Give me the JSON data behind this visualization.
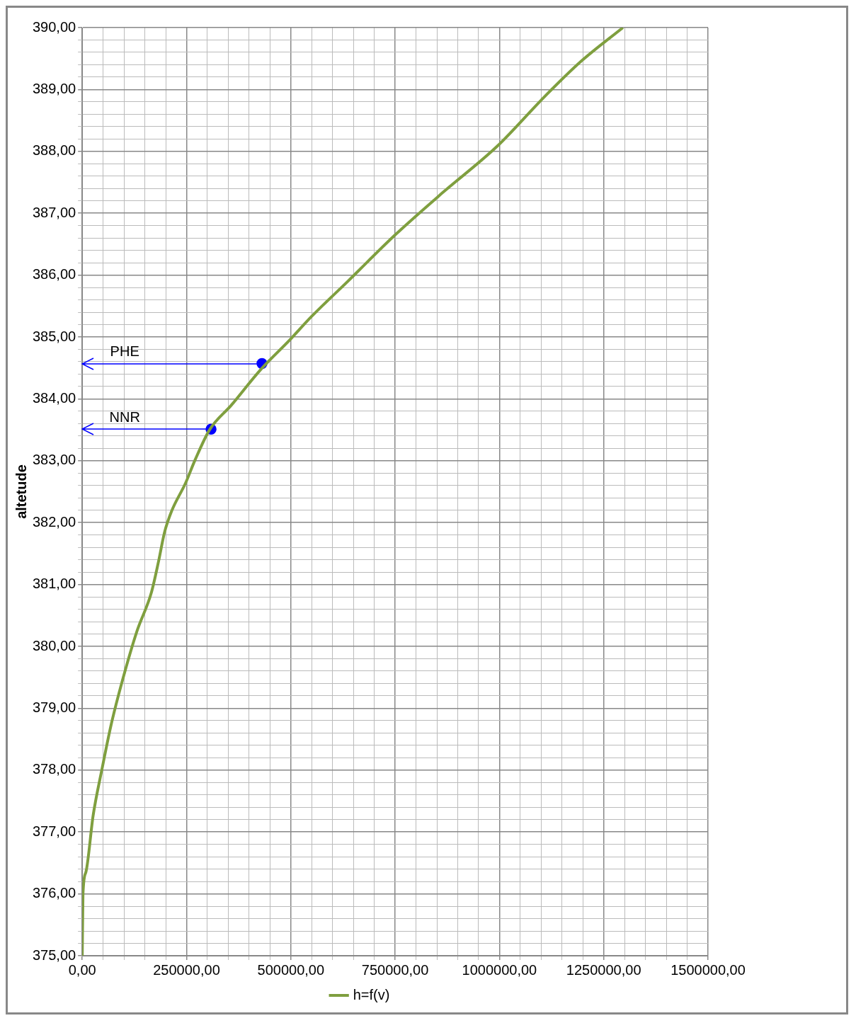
{
  "chart_data": {
    "type": "line",
    "ylabel": "altetude",
    "series": [
      {
        "name": "h=f(v)",
        "color": "#7f9f3f",
        "x": [
          0,
          1744,
          8700,
          26160,
          47100,
          69800,
          95900,
          130800,
          165700,
          183100,
          197100,
          214500,
          247700,
          270300,
          305200,
          357600,
          427300,
          497100,
          549400,
          636600,
          750000,
          863400,
          994200,
          1107600,
          1194800,
          1296000
        ],
        "values": [
          375,
          376.0,
          376.35,
          377.27,
          378.01,
          378.75,
          379.44,
          380.24,
          380.87,
          381.38,
          381.84,
          382.19,
          382.64,
          383.01,
          383.5,
          383.9,
          384.47,
          384.95,
          385.33,
          385.9,
          386.65,
          387.33,
          388.08,
          388.88,
          389.45,
          390
        ]
      },
      {
        "type": "scatter",
        "color": "#0000ff",
        "marker": "circle",
        "x": [
          430800,
          308700
        ],
        "values": [
          384.57,
          383.51
        ]
      }
    ],
    "annotations": [
      "PHE",
      "NNR"
    ],
    "xlim": [
      0,
      1500000
    ],
    "xticks": [
      {
        "value": 0,
        "label": "0,00"
      },
      {
        "value": 50000,
        "label": null
      },
      {
        "value": 100000,
        "label": null
      },
      {
        "value": 150000,
        "label": null
      },
      {
        "value": 200000,
        "label": null
      },
      {
        "value": 250000,
        "label": "250000,00"
      },
      {
        "value": 300000,
        "label": null
      },
      {
        "value": 350000,
        "label": null
      },
      {
        "value": 400000,
        "label": null
      },
      {
        "value": 450000,
        "label": null
      },
      {
        "value": 500000,
        "label": "500000,00"
      },
      {
        "value": 550000,
        "label": null
      },
      {
        "value": 600000,
        "label": null
      },
      {
        "value": 650000,
        "label": null
      },
      {
        "value": 700000,
        "label": null
      },
      {
        "value": 750000,
        "label": "750000,00"
      },
      {
        "value": 800000,
        "label": null
      },
      {
        "value": 850000,
        "label": null
      },
      {
        "value": 900000,
        "label": null
      },
      {
        "value": 950000,
        "label": null
      },
      {
        "value": 1000000,
        "label": "1000000,00"
      },
      {
        "value": 1050000,
        "label": null
      },
      {
        "value": 1100000,
        "label": null
      },
      {
        "value": 1150000,
        "label": null
      },
      {
        "value": 1200000,
        "label": null
      },
      {
        "value": 1250000,
        "label": "1250000,00"
      },
      {
        "value": 1300000,
        "label": null
      },
      {
        "value": 1350000,
        "label": null
      },
      {
        "value": 1400000,
        "label": null
      },
      {
        "value": 1450000,
        "label": null
      },
      {
        "value": 1500000,
        "label": "1500000,00"
      }
    ],
    "ylim": [
      375,
      390
    ],
    "yticks": [
      {
        "value": 375,
        "label": "375,00"
      },
      {
        "value": 375.2,
        "label": null
      },
      {
        "value": 375.4,
        "label": null
      },
      {
        "value": 375.6,
        "label": null
      },
      {
        "value": 375.8,
        "label": null
      },
      {
        "value": 376,
        "label": "376,00"
      },
      {
        "value": 376.2,
        "label": null
      },
      {
        "value": 376.4,
        "label": null
      },
      {
        "value": 376.6,
        "label": null
      },
      {
        "value": 376.8,
        "label": null
      },
      {
        "value": 377,
        "label": "377,00"
      },
      {
        "value": 377.2,
        "label": null
      },
      {
        "value": 377.4,
        "label": null
      },
      {
        "value": 377.6,
        "label": null
      },
      {
        "value": 377.8,
        "label": null
      },
      {
        "value": 378,
        "label": "378,00"
      },
      {
        "value": 378.2,
        "label": null
      },
      {
        "value": 378.4,
        "label": null
      },
      {
        "value": 378.6,
        "label": null
      },
      {
        "value": 378.8,
        "label": null
      },
      {
        "value": 379,
        "label": "379,00"
      },
      {
        "value": 379.2,
        "label": null
      },
      {
        "value": 379.4,
        "label": null
      },
      {
        "value": 379.6,
        "label": null
      },
      {
        "value": 379.8,
        "label": null
      },
      {
        "value": 380,
        "label": "380,00"
      },
      {
        "value": 380.2,
        "label": null
      },
      {
        "value": 380.4,
        "label": null
      },
      {
        "value": 380.6,
        "label": null
      },
      {
        "value": 380.8,
        "label": null
      },
      {
        "value": 381,
        "label": "381,00"
      },
      {
        "value": 381.2,
        "label": null
      },
      {
        "value": 381.4,
        "label": null
      },
      {
        "value": 381.6,
        "label": null
      },
      {
        "value": 381.8,
        "label": null
      },
      {
        "value": 382,
        "label": "382,00"
      },
      {
        "value": 382.2,
        "label": null
      },
      {
        "value": 382.4,
        "label": null
      },
      {
        "value": 382.6,
        "label": null
      },
      {
        "value": 382.8,
        "label": null
      },
      {
        "value": 383,
        "label": "383,00"
      },
      {
        "value": 383.2,
        "label": null
      },
      {
        "value": 383.4,
        "label": null
      },
      {
        "value": 383.6,
        "label": null
      },
      {
        "value": 383.8,
        "label": null
      },
      {
        "value": 384,
        "label": "384,00"
      },
      {
        "value": 384.2,
        "label": null
      },
      {
        "value": 384.4,
        "label": null
      },
      {
        "value": 384.6,
        "label": null
      },
      {
        "value": 384.8,
        "label": null
      },
      {
        "value": 385,
        "label": "385,00"
      },
      {
        "value": 385.2,
        "label": null
      },
      {
        "value": 385.4,
        "label": null
      },
      {
        "value": 385.6,
        "label": null
      },
      {
        "value": 385.8,
        "label": null
      },
      {
        "value": 386,
        "label": "386,00"
      },
      {
        "value": 386.2,
        "label": null
      },
      {
        "value": 386.4,
        "label": null
      },
      {
        "value": 386.6,
        "label": null
      },
      {
        "value": 386.8,
        "label": null
      },
      {
        "value": 387,
        "label": "387,00"
      },
      {
        "value": 387.2,
        "label": null
      },
      {
        "value": 387.4,
        "label": null
      },
      {
        "value": 387.6,
        "label": null
      },
      {
        "value": 387.8,
        "label": null
      },
      {
        "value": 388,
        "label": "388,00"
      },
      {
        "value": 388.2,
        "label": null
      },
      {
        "value": 388.4,
        "label": null
      },
      {
        "value": 388.6,
        "label": null
      },
      {
        "value": 388.8,
        "label": null
      },
      {
        "value": 389,
        "label": "389,00"
      },
      {
        "value": 389.2,
        "label": null
      },
      {
        "value": 389.4,
        "label": null
      },
      {
        "value": 389.6,
        "label": null
      },
      {
        "value": 389.8,
        "label": null
      },
      {
        "value": 390,
        "label": "390,00"
      }
    ],
    "grid": true,
    "legend": "bottom",
    "marker": "none",
    "line_style": "solid"
  }
}
